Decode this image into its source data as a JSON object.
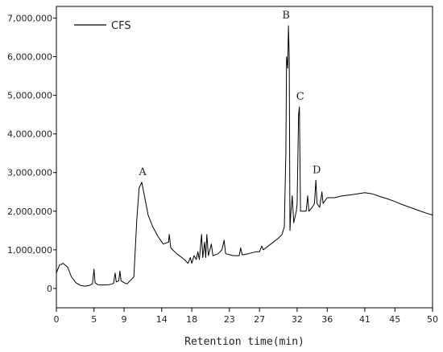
{
  "chart_data": {
    "type": "line",
    "xlabel": "Retention time(min)",
    "ylabel": "",
    "xlim": [
      0,
      50
    ],
    "ylim": [
      -500000,
      7300000
    ],
    "x_ticks": [
      0,
      5,
      9,
      14,
      18,
      23,
      27,
      32,
      36,
      41,
      45,
      50
    ],
    "y_ticks": [
      {
        "value": 0,
        "label": "0"
      },
      {
        "value": 1000000,
        "label": "1,000,000"
      },
      {
        "value": 2000000,
        "label": "2,000,000"
      },
      {
        "value": 3000000,
        "label": "3,000,000"
      },
      {
        "value": 4000000,
        "label": "4,000,000"
      },
      {
        "value": 5000000,
        "label": "5,000,000"
      },
      {
        "value": 6000000,
        "label": "6,000,000"
      },
      {
        "value": 7000000,
        "label": "7,000,000"
      }
    ],
    "grid": false,
    "legend_position": "top-left",
    "series": [
      {
        "name": "CFS",
        "color": "#000000",
        "points": [
          [
            0.0,
            400000
          ],
          [
            0.4,
            600000
          ],
          [
            0.9,
            650000
          ],
          [
            1.5,
            550000
          ],
          [
            2.0,
            300000
          ],
          [
            2.6,
            150000
          ],
          [
            3.2,
            80000
          ],
          [
            3.8,
            60000
          ],
          [
            4.4,
            80000
          ],
          [
            4.8,
            120000
          ],
          [
            5.0,
            500000
          ],
          [
            5.15,
            150000
          ],
          [
            5.5,
            100000
          ],
          [
            6.2,
            90000
          ],
          [
            7.0,
            100000
          ],
          [
            7.6,
            130000
          ],
          [
            7.8,
            400000
          ],
          [
            7.95,
            170000
          ],
          [
            8.3,
            200000
          ],
          [
            8.45,
            450000
          ],
          [
            8.6,
            200000
          ],
          [
            9.0,
            150000
          ],
          [
            9.4,
            120000
          ],
          [
            9.8,
            200000
          ],
          [
            10.3,
            300000
          ],
          [
            10.7,
            1800000
          ],
          [
            11.0,
            2600000
          ],
          [
            11.35,
            2750000
          ],
          [
            11.7,
            2400000
          ],
          [
            12.2,
            1900000
          ],
          [
            12.8,
            1600000
          ],
          [
            13.5,
            1350000
          ],
          [
            14.2,
            1150000
          ],
          [
            14.9,
            1200000
          ],
          [
            15.0,
            1400000
          ],
          [
            15.2,
            1050000
          ],
          [
            16.0,
            900000
          ],
          [
            17.0,
            750000
          ],
          [
            17.5,
            650000
          ],
          [
            17.8,
            800000
          ],
          [
            18.0,
            650000
          ],
          [
            18.3,
            850000
          ],
          [
            18.6,
            750000
          ],
          [
            18.8,
            950000
          ],
          [
            19.0,
            750000
          ],
          [
            19.3,
            1400000
          ],
          [
            19.45,
            800000
          ],
          [
            19.7,
            1200000
          ],
          [
            19.85,
            800000
          ],
          [
            20.0,
            1400000
          ],
          [
            20.2,
            850000
          ],
          [
            20.6,
            1150000
          ],
          [
            20.8,
            850000
          ],
          [
            21.5,
            900000
          ],
          [
            22.0,
            1000000
          ],
          [
            22.3,
            1250000
          ],
          [
            22.5,
            900000
          ],
          [
            23.5,
            850000
          ],
          [
            24.3,
            850000
          ],
          [
            24.5,
            1050000
          ],
          [
            24.7,
            870000
          ],
          [
            25.5,
            900000
          ],
          [
            26.5,
            950000
          ],
          [
            27.0,
            950000
          ],
          [
            27.3,
            1100000
          ],
          [
            27.5,
            1000000
          ],
          [
            28.5,
            1150000
          ],
          [
            29.5,
            1300000
          ],
          [
            30.0,
            1400000
          ],
          [
            30.3,
            1600000
          ],
          [
            30.5,
            3500000
          ],
          [
            30.6,
            6000000
          ],
          [
            30.75,
            5700000
          ],
          [
            30.85,
            6800000
          ],
          [
            30.95,
            6000000
          ],
          [
            31.05,
            1500000
          ],
          [
            31.15,
            1900000
          ],
          [
            31.35,
            2400000
          ],
          [
            31.55,
            1700000
          ],
          [
            31.9,
            2000000
          ],
          [
            32.0,
            2200000
          ],
          [
            32.2,
            4500000
          ],
          [
            32.3,
            4700000
          ],
          [
            32.45,
            2000000
          ],
          [
            32.7,
            2000000
          ],
          [
            33.2,
            2000000
          ],
          [
            33.4,
            2400000
          ],
          [
            33.55,
            2000000
          ],
          [
            34.0,
            2100000
          ],
          [
            34.3,
            2200000
          ],
          [
            34.5,
            2800000
          ],
          [
            34.65,
            2200000
          ],
          [
            35.0,
            2100000
          ],
          [
            35.3,
            2500000
          ],
          [
            35.45,
            2200000
          ],
          [
            36.0,
            2350000
          ],
          [
            37.0,
            2350000
          ],
          [
            38.0,
            2400000
          ],
          [
            39.0,
            2420000
          ],
          [
            40.0,
            2450000
          ],
          [
            41.0,
            2480000
          ],
          [
            42.0,
            2450000
          ],
          [
            43.0,
            2380000
          ],
          [
            44.0,
            2320000
          ],
          [
            45.0,
            2250000
          ],
          [
            46.0,
            2170000
          ],
          [
            47.0,
            2100000
          ],
          [
            48.0,
            2030000
          ],
          [
            49.0,
            1960000
          ],
          [
            50.0,
            1900000
          ]
        ]
      }
    ],
    "annotations": [
      {
        "label": "A",
        "x": 11.35,
        "y": 2750000
      },
      {
        "label": "B",
        "x": 30.85,
        "y": 6800000
      },
      {
        "label": "C",
        "x": 32.3,
        "y": 4700000
      },
      {
        "label": "D",
        "x": 34.5,
        "y": 2800000
      }
    ]
  }
}
